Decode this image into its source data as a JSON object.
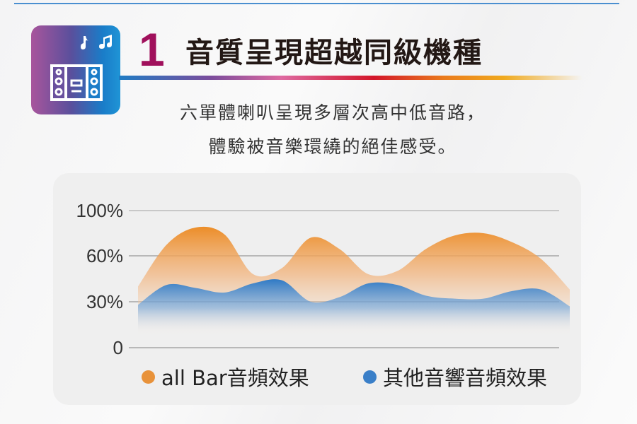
{
  "header": {
    "number": "1",
    "title": "音質呈現超越同級機種",
    "subtitle_lines": [
      "六單體喇叭呈現多層次高中低音路，",
      "體驗被音樂環繞的絕佳感受。"
    ],
    "icon": "stereo-speaker-music-icon"
  },
  "colors": {
    "accent_number": "#a0105c",
    "orange": "#e8923a",
    "blue": "#3a7fc8",
    "title_text": "#231815"
  },
  "chart_data": {
    "type": "area",
    "title": "",
    "xlabel": "",
    "ylabel": "",
    "y_ticks": [
      "100%",
      "60%",
      "30%",
      "0"
    ],
    "y_tick_values": [
      100,
      60,
      30,
      0
    ],
    "ylim": [
      0,
      100
    ],
    "grid": true,
    "legend_placement": "bottom",
    "series": [
      {
        "name": "all Bar音頻效果",
        "color": "#e8923a",
        "values": [
          40,
          70,
          85,
          79,
          48,
          52,
          76,
          66,
          48,
          50,
          66,
          78,
          80,
          72,
          58,
          38
        ]
      },
      {
        "name": "其他音響音頻效果",
        "color": "#3a7fc8",
        "values": [
          28,
          41,
          39,
          36,
          42,
          44,
          30,
          33,
          42,
          41,
          34,
          32,
          32,
          37,
          38,
          27
        ]
      }
    ]
  }
}
